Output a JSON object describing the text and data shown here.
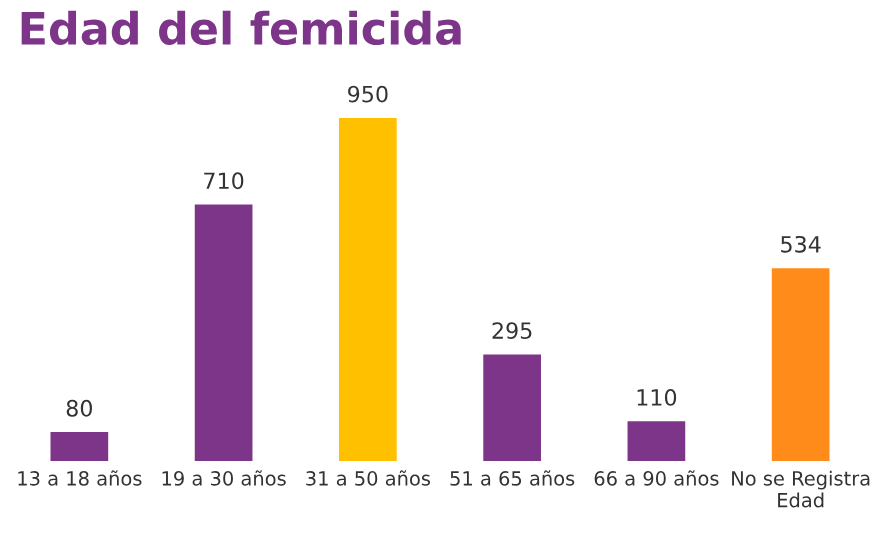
{
  "chart_data": {
    "type": "bar",
    "title": "Edad del femicida",
    "categories": [
      "13 a 18 años",
      "19 a 30 años",
      "31 a 50 años",
      "51 a 65 años",
      "66 a 90 años",
      "No se Registra\nEdad"
    ],
    "values": [
      80,
      710,
      950,
      295,
      110,
      534
    ],
    "colors": [
      "#7d3589",
      "#7d3589",
      "#ffc000",
      "#7d3589",
      "#7d3589",
      "#ff8c1a"
    ],
    "data_labels": true,
    "grid": false,
    "legend": false
  }
}
